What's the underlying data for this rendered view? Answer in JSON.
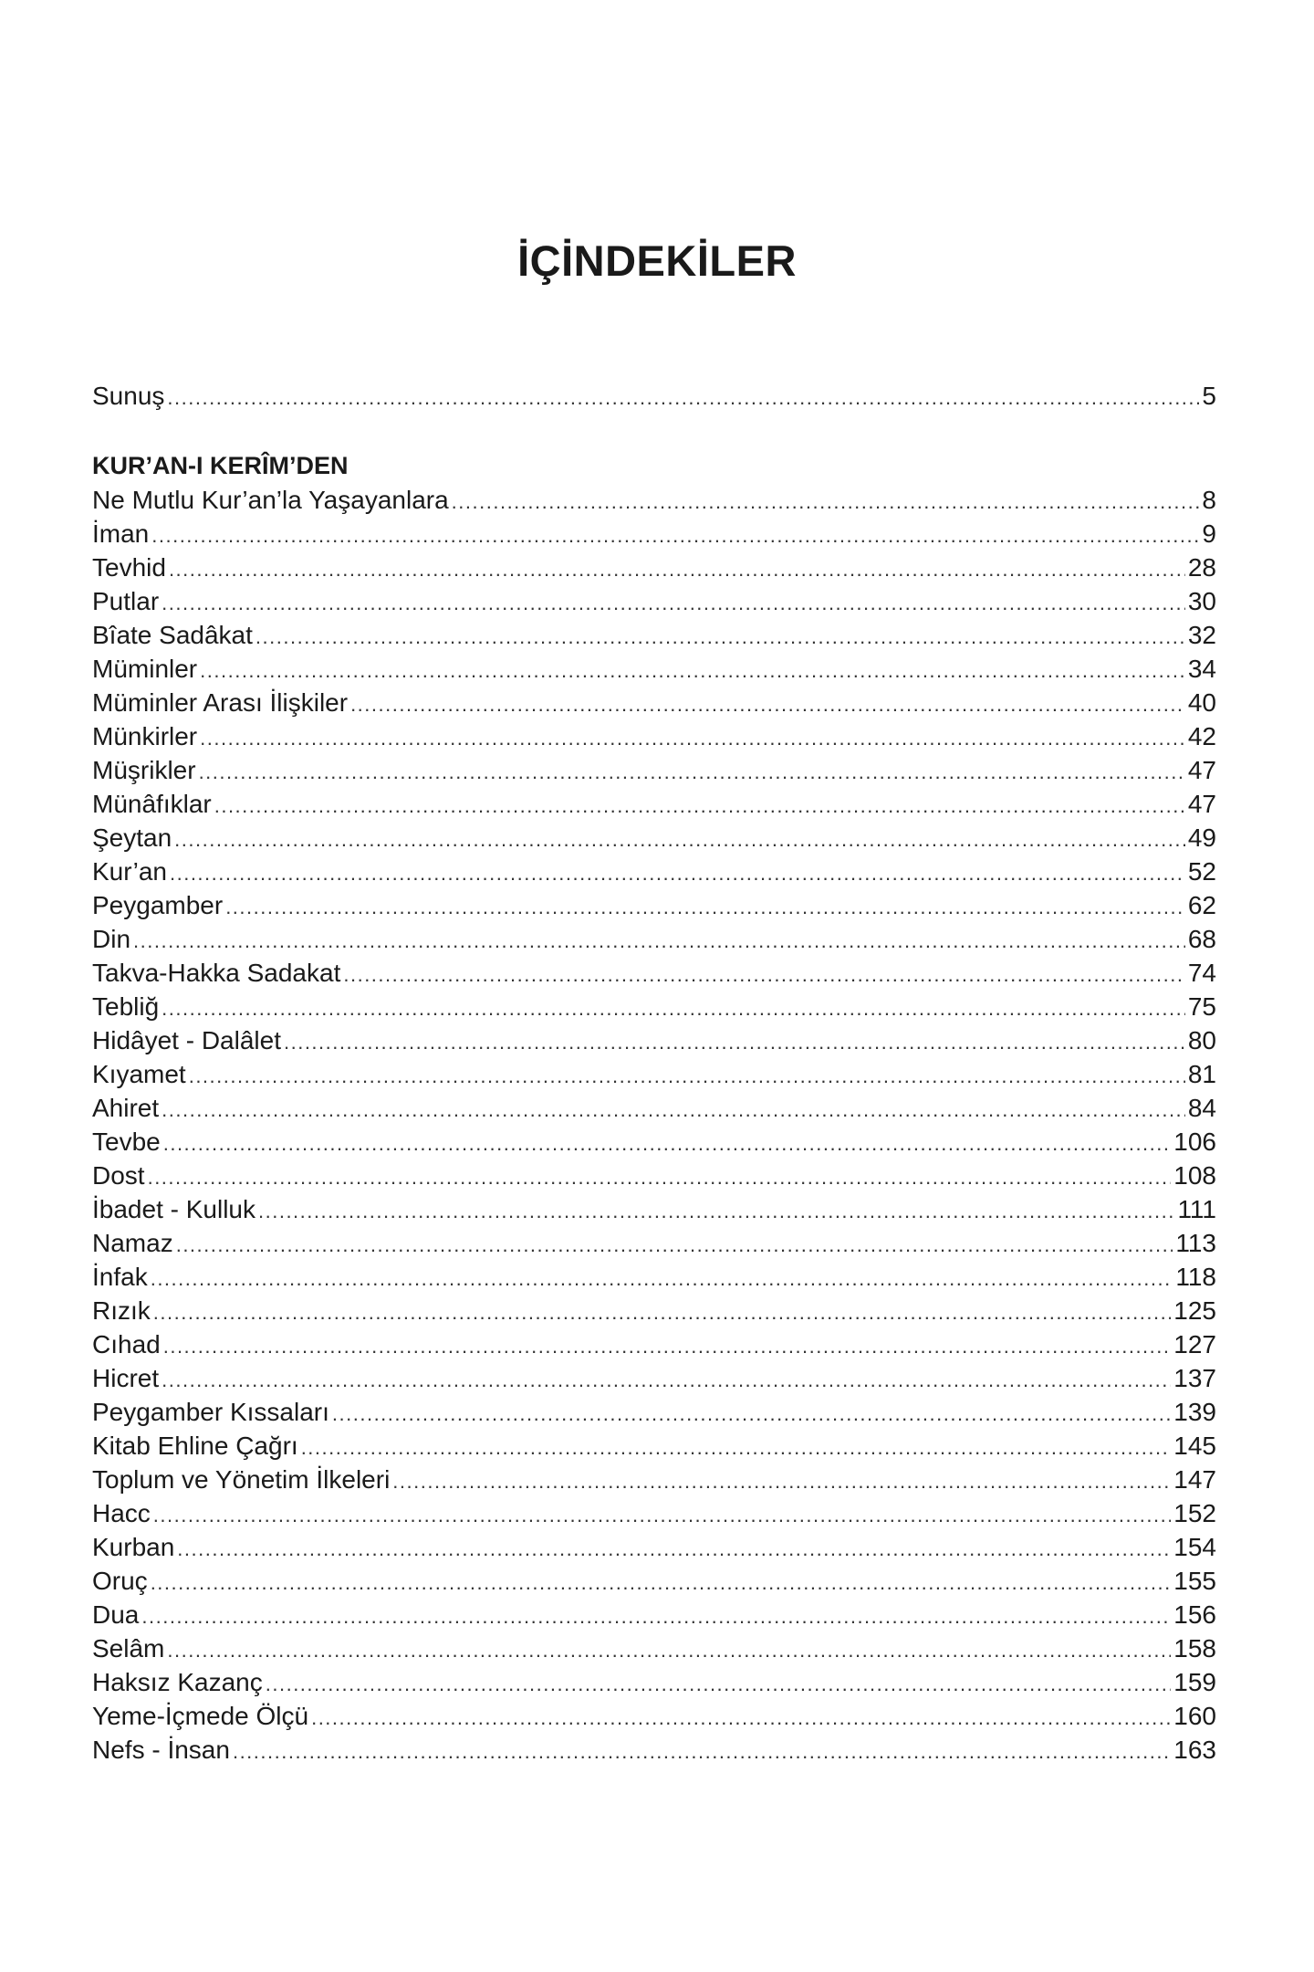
{
  "title": "İÇİNDEKİLER",
  "intro": {
    "label": "Sunuş",
    "page": "5"
  },
  "section": {
    "heading": "KUR’AN-I KERÎM’DEN",
    "entries": [
      {
        "label": "Ne Mutlu Kur’an’la Yaşayanlara",
        "page": "8"
      },
      {
        "label": "İman",
        "page": "9"
      },
      {
        "label": "Tevhid",
        "page": "28"
      },
      {
        "label": "Putlar",
        "page": "30"
      },
      {
        "label": "Bîate Sadâkat",
        "page": "32"
      },
      {
        "label": "Müminler",
        "page": "34"
      },
      {
        "label": "Müminler Arası İlişkiler",
        "page": "40"
      },
      {
        "label": "Münkirler",
        "page": "42"
      },
      {
        "label": "Müşrikler",
        "page": "47"
      },
      {
        "label": "Münâfıklar",
        "page": "47"
      },
      {
        "label": "Şeytan",
        "page": "49"
      },
      {
        "label": "Kur’an",
        "page": "52"
      },
      {
        "label": "Peygamber",
        "page": "62"
      },
      {
        "label": "Din",
        "page": "68"
      },
      {
        "label": "Takva-Hakka Sadakat",
        "page": "74"
      },
      {
        "label": "Tebliğ",
        "page": "75"
      },
      {
        "label": "Hidâyet - Dalâlet",
        "page": "80"
      },
      {
        "label": "Kıyamet",
        "page": "81"
      },
      {
        "label": "Ahiret",
        "page": "84"
      },
      {
        "label": "Tevbe",
        "page": "106"
      },
      {
        "label": "Dost",
        "page": "108"
      },
      {
        "label": "İbadet - Kulluk",
        "page": "111"
      },
      {
        "label": "Namaz",
        "page": "113"
      },
      {
        "label": "İnfak",
        "page": "118"
      },
      {
        "label": "Rızık",
        "page": "125"
      },
      {
        "label": "Cıhad",
        "page": "127"
      },
      {
        "label": "Hicret",
        "page": "137"
      },
      {
        "label": "Peygamber Kıssaları",
        "page": "139"
      },
      {
        "label": "Kitab Ehline Çağrı",
        "page": "145"
      },
      {
        "label": "Toplum ve Yönetim İlkeleri",
        "page": "147"
      },
      {
        "label": "Hacc",
        "page": "152"
      },
      {
        "label": "Kurban",
        "page": "154"
      },
      {
        "label": "Oruç",
        "page": "155"
      },
      {
        "label": "Dua",
        "page": "156"
      },
      {
        "label": "Selâm",
        "page": "158"
      },
      {
        "label": "Haksız Kazanç",
        "page": "159"
      },
      {
        "label": "Yeme-İçmede Ölçü",
        "page": "160"
      },
      {
        "label": "Nefs - İnsan",
        "page": "163"
      }
    ]
  }
}
